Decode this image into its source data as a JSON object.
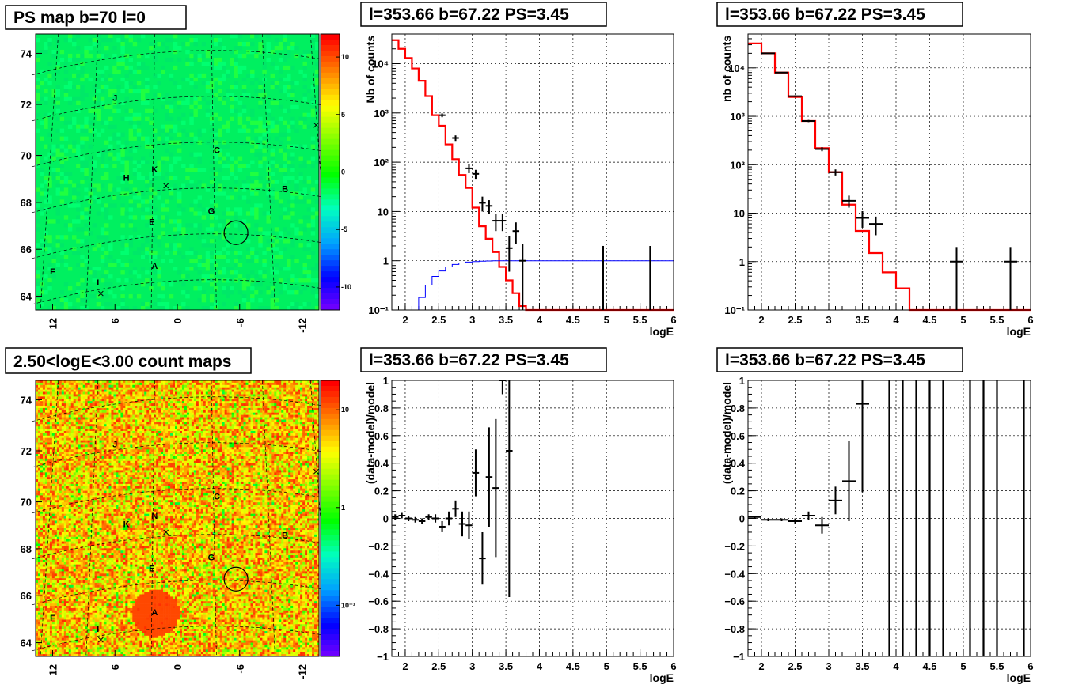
{
  "chart_data": [
    {
      "type": "heatmap",
      "title": "PS map b=70 l=0",
      "x_ticks": [
        "12",
        "6",
        "0",
        "-6",
        "-12"
      ],
      "y_ticks": [
        "74",
        "72",
        "70",
        "68",
        "66",
        "64"
      ],
      "colorbar_ticks": [
        "10",
        "5",
        "0",
        "-5",
        "-10"
      ],
      "colorbar_range": [
        -12,
        12
      ],
      "colormap": [
        "#7f00ff",
        "#0000ff",
        "#00a0ff",
        "#00ffc0",
        "#00ff00",
        "#80ff00",
        "#ffff00",
        "#ff8000",
        "#ff0000"
      ],
      "background_color": "#00f060",
      "markers": [
        "J",
        "C",
        "K",
        "H",
        "B",
        "G",
        "E",
        "A",
        "F",
        "I"
      ]
    },
    {
      "type": "line",
      "title": "l=353.66 b=67.22 PS=3.45",
      "xlabel": "logE",
      "ylabel": "Nb of counts",
      "xlim": [
        1.8,
        6
      ],
      "ylim": [
        0.1,
        40000
      ],
      "log_y": true,
      "grid": true,
      "x_ticks": [
        "2",
        "2.5",
        "3",
        "3.5",
        "4",
        "4.5",
        "5",
        "5.5",
        "6"
      ],
      "y_ticks": [
        "10⁻¹",
        "1",
        "10",
        "10²",
        "10³",
        "10⁴"
      ],
      "series": [
        {
          "style": "step",
          "color": "#ff0000",
          "edges": [
            1.8,
            1.9,
            2.0,
            2.1,
            2.2,
            2.3,
            2.4,
            2.5,
            2.6,
            2.7,
            2.8,
            2.9,
            3.0,
            3.1,
            3.2,
            3.3,
            3.4,
            3.5,
            3.6,
            3.7,
            3.8,
            3.9,
            4.0,
            6.0
          ],
          "values": [
            30000,
            20000,
            13000,
            8000,
            4500,
            2200,
            900,
            550,
            230,
            115,
            55,
            30,
            12,
            5,
            2.8,
            1.5,
            0.75,
            0.4,
            0.22,
            0.12,
            0.1,
            0.1,
            0.1
          ]
        },
        {
          "style": "step",
          "color": "#0000ff",
          "edges": [
            1.8,
            1.9,
            2.0,
            2.1,
            2.2,
            2.3,
            2.4,
            2.5,
            2.6,
            2.7,
            2.8,
            2.9,
            3.0,
            3.1,
            3.2,
            3.3,
            3.4,
            3.5,
            3.6,
            3.7,
            6.0
          ],
          "values": [
            0.1,
            0.1,
            0.1,
            0.1,
            0.18,
            0.32,
            0.48,
            0.62,
            0.75,
            0.84,
            0.9,
            0.94,
            0.96,
            0.98,
            0.99,
            1.0,
            1.0,
            1.0,
            1.0,
            1.0
          ]
        },
        {
          "style": "errorbar",
          "color": "#000000",
          "points": [
            {
              "x": 2.55,
              "y": 900,
              "xerr": 0.05,
              "lo": 820,
              "hi": 980
            },
            {
              "x": 2.75,
              "y": 310,
              "xerr": 0.05,
              "lo": 270,
              "hi": 350
            },
            {
              "x": 2.95,
              "y": 75,
              "xerr": 0.05,
              "lo": 60,
              "hi": 90
            },
            {
              "x": 3.05,
              "y": 58,
              "xerr": 0.05,
              "lo": 46,
              "hi": 70
            },
            {
              "x": 3.15,
              "y": 15,
              "xerr": 0.05,
              "lo": 10,
              "hi": 20
            },
            {
              "x": 3.25,
              "y": 13,
              "xerr": 0.05,
              "lo": 9,
              "hi": 17
            },
            {
              "x": 3.35,
              "y": 6.5,
              "xerr": 0.05,
              "lo": 4,
              "hi": 9
            },
            {
              "x": 3.45,
              "y": 6.5,
              "xerr": 0.05,
              "lo": 4,
              "hi": 9
            },
            {
              "x": 3.55,
              "y": 1.8,
              "xerr": 0.05,
              "lo": 0.6,
              "hi": 3.2
            },
            {
              "x": 3.65,
              "y": 4,
              "xerr": 0.05,
              "lo": 2.2,
              "hi": 6
            },
            {
              "x": 3.75,
              "y": 1,
              "xerr": 0.05,
              "lo": 0.1,
              "hi": 2.2
            },
            {
              "x": 4.95,
              "y": 1,
              "xerr": 0.01,
              "lo": 0.1,
              "hi": 2
            },
            {
              "x": 5.65,
              "y": 1,
              "xerr": 0.01,
              "lo": 0.1,
              "hi": 2
            }
          ]
        }
      ]
    },
    {
      "type": "line",
      "title": "l=353.66 b=67.22 PS=3.45",
      "xlabel": "logE",
      "ylabel": "nb of counts",
      "xlim": [
        1.8,
        6
      ],
      "ylim": [
        0.1,
        50000
      ],
      "log_y": true,
      "grid": true,
      "x_ticks": [
        "2",
        "2.5",
        "3",
        "3.5",
        "4",
        "4.5",
        "5",
        "5.5",
        "6"
      ],
      "y_ticks": [
        "10⁻¹",
        "1",
        "10",
        "10²",
        "10³",
        "10⁴"
      ],
      "series": [
        {
          "style": "step",
          "color": "#ff0000",
          "edges": [
            1.8,
            2.0,
            2.2,
            2.4,
            2.6,
            2.8,
            3.0,
            3.2,
            3.4,
            3.6,
            3.8,
            4.0,
            4.2,
            6.0
          ],
          "values": [
            32000,
            20000,
            8000,
            2500,
            800,
            220,
            70,
            15,
            4.3,
            1.5,
            0.6,
            0.28,
            0.1
          ]
        },
        {
          "style": "errorbar",
          "color": "#000000",
          "points": [
            {
              "x": 2.1,
              "y": 20000,
              "xerr": 0.1,
              "lo": 19500,
              "hi": 20500
            },
            {
              "x": 2.3,
              "y": 8000,
              "xerr": 0.1,
              "lo": 7800,
              "hi": 8200
            },
            {
              "x": 2.5,
              "y": 2600,
              "xerr": 0.1,
              "lo": 2500,
              "hi": 2700
            },
            {
              "x": 2.7,
              "y": 800,
              "xerr": 0.1,
              "lo": 760,
              "hi": 840
            },
            {
              "x": 2.9,
              "y": 210,
              "xerr": 0.1,
              "lo": 190,
              "hi": 230
            },
            {
              "x": 3.1,
              "y": 70,
              "xerr": 0.1,
              "lo": 60,
              "hi": 80
            },
            {
              "x": 3.3,
              "y": 18,
              "xerr": 0.1,
              "lo": 13,
              "hi": 23
            },
            {
              "x": 3.5,
              "y": 8,
              "xerr": 0.1,
              "lo": 5,
              "hi": 11
            },
            {
              "x": 3.7,
              "y": 6,
              "xerr": 0.1,
              "lo": 3.5,
              "hi": 8.5
            },
            {
              "x": 4.9,
              "y": 1,
              "xerr": 0.1,
              "lo": 0.1,
              "hi": 2
            },
            {
              "x": 5.7,
              "y": 1,
              "xerr": 0.1,
              "lo": 0.1,
              "hi": 2
            }
          ]
        }
      ]
    },
    {
      "type": "heatmap",
      "title": "2.50<logE<3.00 count maps",
      "x_ticks": [
        "12",
        "6",
        "0",
        "-6",
        "-12"
      ],
      "y_ticks": [
        "74",
        "72",
        "70",
        "68",
        "66",
        "64"
      ],
      "colorbar_ticks": [
        "10",
        "1",
        "10⁻¹"
      ],
      "colorbar_range": [
        0.03,
        20
      ],
      "log_colorbar": true,
      "colormap": [
        "#7f00ff",
        "#0000ff",
        "#00a0ff",
        "#00ffc0",
        "#00ff00",
        "#80ff00",
        "#ffff00",
        "#ff8000",
        "#ff0000"
      ],
      "markers": [
        "J",
        "C",
        "N",
        "K",
        "B",
        "G",
        "E",
        "A",
        "F",
        "I"
      ]
    },
    {
      "type": "scatter",
      "title": "l=353.66 b=67.22 PS=3.45",
      "xlabel": "logE",
      "ylabel": "(data-model)/model",
      "xlim": [
        1.8,
        6
      ],
      "ylim": [
        -1,
        1
      ],
      "grid": true,
      "x_ticks": [
        "2",
        "2.5",
        "3",
        "3.5",
        "4",
        "4.5",
        "5",
        "5.5",
        "6"
      ],
      "y_ticks": [
        "−1",
        "−0.8",
        "−0.6",
        "−0.4",
        "−0.2",
        "0",
        "0.2",
        "0.4",
        "0.6",
        "0.8",
        "1"
      ],
      "series": [
        {
          "style": "errorbar",
          "color": "#000000",
          "points": [
            {
              "x": 1.85,
              "y": 0.01,
              "xerr": 0.05,
              "lo": -0.01,
              "hi": 0.03
            },
            {
              "x": 1.95,
              "y": 0.02,
              "xerr": 0.05,
              "lo": 0.0,
              "hi": 0.04
            },
            {
              "x": 2.05,
              "y": 0.0,
              "xerr": 0.05,
              "lo": -0.02,
              "hi": 0.02
            },
            {
              "x": 2.15,
              "y": -0.01,
              "xerr": 0.05,
              "lo": -0.03,
              "hi": 0.01
            },
            {
              "x": 2.25,
              "y": -0.02,
              "xerr": 0.05,
              "lo": -0.04,
              "hi": 0.0
            },
            {
              "x": 2.35,
              "y": 0.01,
              "xerr": 0.05,
              "lo": -0.01,
              "hi": 0.03
            },
            {
              "x": 2.45,
              "y": 0.0,
              "xerr": 0.05,
              "lo": -0.03,
              "hi": 0.03
            },
            {
              "x": 2.55,
              "y": -0.06,
              "xerr": 0.05,
              "lo": -0.1,
              "hi": -0.02
            },
            {
              "x": 2.65,
              "y": 0.0,
              "xerr": 0.05,
              "lo": -0.05,
              "hi": 0.05
            },
            {
              "x": 2.75,
              "y": 0.07,
              "xerr": 0.05,
              "lo": 0.01,
              "hi": 0.13
            },
            {
              "x": 2.85,
              "y": -0.04,
              "xerr": 0.05,
              "lo": -0.13,
              "hi": 0.05
            },
            {
              "x": 2.95,
              "y": -0.05,
              "xerr": 0.05,
              "lo": -0.15,
              "hi": 0.05
            },
            {
              "x": 3.05,
              "y": 0.33,
              "xerr": 0.05,
              "lo": 0.16,
              "hi": 0.5
            },
            {
              "x": 3.15,
              "y": -0.29,
              "xerr": 0.05,
              "lo": -0.48,
              "hi": -0.1
            },
            {
              "x": 3.25,
              "y": 0.3,
              "xerr": 0.05,
              "lo": -0.06,
              "hi": 0.66
            },
            {
              "x": 3.35,
              "y": 0.22,
              "xerr": 0.05,
              "lo": -0.28,
              "hi": 0.72
            },
            {
              "x": 3.45,
              "y": 1.0,
              "xerr": 0.05,
              "lo": 0.9,
              "hi": 1.0
            },
            {
              "x": 3.55,
              "y": 0.49,
              "xerr": 0.05,
              "lo": -0.57,
              "hi": 1.0
            }
          ]
        }
      ]
    },
    {
      "type": "scatter",
      "title": "l=353.66 b=67.22 PS=3.45",
      "xlabel": "logE",
      "ylabel": "(data-model)/model",
      "xlim": [
        1.8,
        6
      ],
      "ylim": [
        -1,
        1
      ],
      "grid": true,
      "x_ticks": [
        "2",
        "2.5",
        "3",
        "3.5",
        "4",
        "4.5",
        "5",
        "5.5",
        "6"
      ],
      "y_ticks": [
        "−1",
        "−0.8",
        "−0.6",
        "−0.4",
        "−0.2",
        "0",
        "0.2",
        "0.4",
        "0.6",
        "0.8",
        "1"
      ],
      "series": [
        {
          "style": "errorbar",
          "color": "#000000",
          "points": [
            {
              "x": 1.9,
              "y": 0.01,
              "xerr": 0.1,
              "lo": 0.0,
              "hi": 0.02
            },
            {
              "x": 2.1,
              "y": -0.01,
              "xerr": 0.1,
              "lo": -0.02,
              "hi": 0.0
            },
            {
              "x": 2.3,
              "y": -0.01,
              "xerr": 0.1,
              "lo": -0.02,
              "hi": 0.0
            },
            {
              "x": 2.5,
              "y": -0.02,
              "xerr": 0.1,
              "lo": -0.04,
              "hi": 0.0
            },
            {
              "x": 2.7,
              "y": 0.02,
              "xerr": 0.1,
              "lo": -0.01,
              "hi": 0.05
            },
            {
              "x": 2.9,
              "y": -0.05,
              "xerr": 0.1,
              "lo": -0.11,
              "hi": 0.01
            },
            {
              "x": 3.1,
              "y": 0.13,
              "xerr": 0.1,
              "lo": 0.03,
              "hi": 0.23
            },
            {
              "x": 3.3,
              "y": 0.27,
              "xerr": 0.1,
              "lo": -0.02,
              "hi": 0.56
            },
            {
              "x": 3.5,
              "y": 0.83,
              "xerr": 0.1,
              "lo": 0.19,
              "hi": 1.0
            }
          ]
        },
        {
          "style": "vlines",
          "color": "#000000",
          "x": [
            3.9,
            4.1,
            4.3,
            4.5,
            4.7,
            5.1,
            5.3,
            5.5,
            5.9
          ]
        }
      ]
    }
  ]
}
